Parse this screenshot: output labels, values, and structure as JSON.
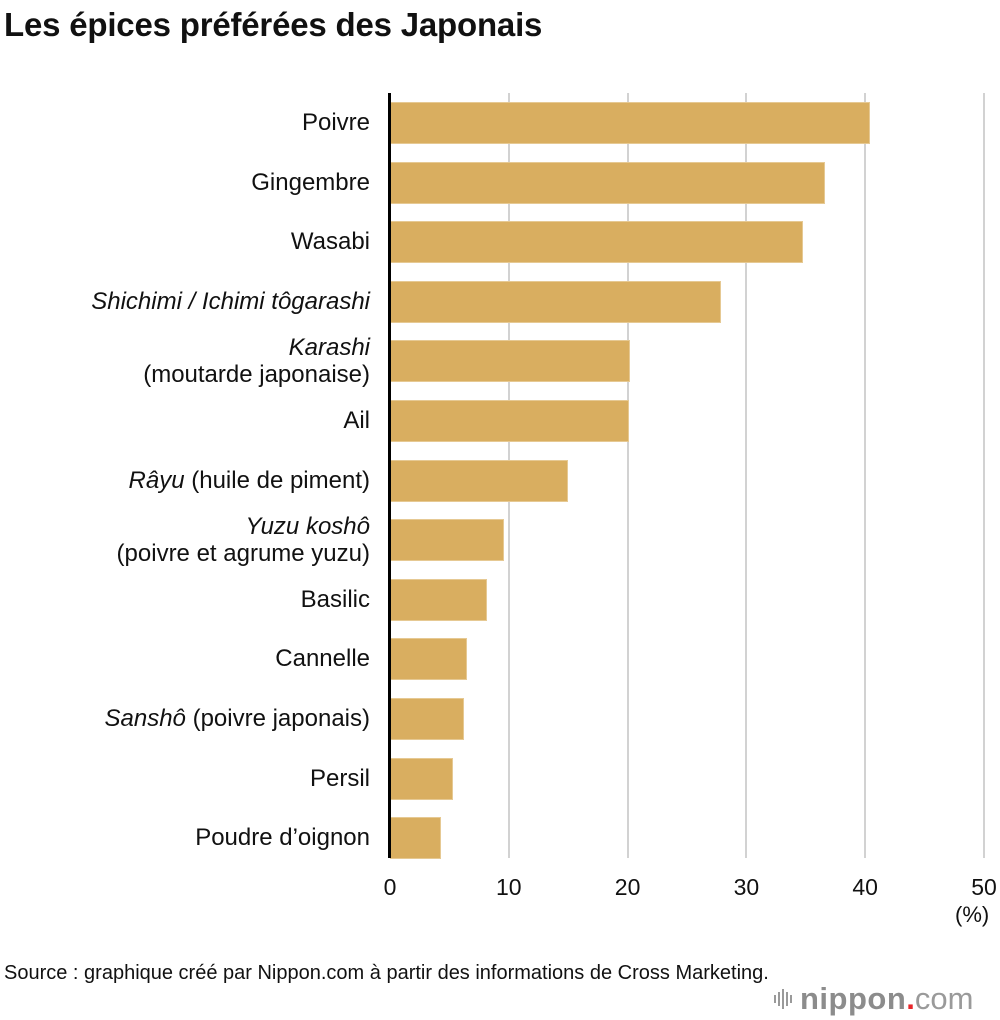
{
  "title": "Les épices préférées des Japonais",
  "axis": {
    "ticks": [
      "0",
      "10",
      "20",
      "30",
      "40",
      "50"
    ],
    "unit": "(%)"
  },
  "source": "Source : graphique créé par Nippon.com à partir des informations de Cross Marketing.",
  "logo": {
    "name": "nippon",
    "dot": ".",
    "suffix": "com"
  },
  "colors": {
    "bar": "#D9AE60",
    "grid": "#D2D2D2",
    "axis": "#000000",
    "logo_dot": "#E8262A"
  },
  "labels": [
    {
      "italic": "",
      "normal": "Poivre",
      "line2": ""
    },
    {
      "italic": "",
      "normal": "Gingembre",
      "line2": ""
    },
    {
      "italic": "",
      "normal": "Wasabi",
      "line2": ""
    },
    {
      "italic": "Shichimi / Ichimi tôgarashi",
      "normal": "",
      "line2": ""
    },
    {
      "italic": "Karashi",
      "normal": "",
      "line2": "(moutarde japonaise)"
    },
    {
      "italic": "",
      "normal": "Ail",
      "line2": ""
    },
    {
      "italic": "Râyu",
      "normal": " (huile de piment)",
      "line2": ""
    },
    {
      "italic": "Yuzu koshô",
      "normal": "",
      "line2": "(poivre et agrume yuzu)"
    },
    {
      "italic": "",
      "normal": "Basilic",
      "line2": ""
    },
    {
      "italic": "",
      "normal": "Cannelle",
      "line2": ""
    },
    {
      "italic": "Sanshô",
      "normal": " (poivre japonais)",
      "line2": ""
    },
    {
      "italic": "",
      "normal": "Persil",
      "line2": ""
    },
    {
      "italic": "",
      "normal": "Poudre d’oignon",
      "line2": ""
    }
  ],
  "chart_data": {
    "type": "bar",
    "orientation": "horizontal",
    "title": "Les épices préférées des Japonais",
    "categories": [
      "Poivre",
      "Gingembre",
      "Wasabi",
      "Shichimi / Ichimi tôgarashi",
      "Karashi (moutarde japonaise)",
      "Ail",
      "Râyu (huile de piment)",
      "Yuzu koshô (poivre et agrume yuzu)",
      "Basilic",
      "Cannelle",
      "Sanshô (poivre japonais)",
      "Persil",
      "Poudre d’oignon"
    ],
    "values": [
      40.4,
      36.6,
      34.8,
      27.9,
      20.2,
      20.1,
      15.0,
      9.6,
      8.2,
      6.5,
      6.2,
      5.3,
      4.3
    ],
    "xlabel": "(%)",
    "ylabel": "",
    "xlim": [
      0,
      50
    ],
    "xticks": [
      0,
      10,
      20,
      30,
      40,
      50
    ],
    "grid": true,
    "legend": null,
    "source": "Source : graphique créé par Nippon.com à partir des informations de Cross Marketing."
  }
}
